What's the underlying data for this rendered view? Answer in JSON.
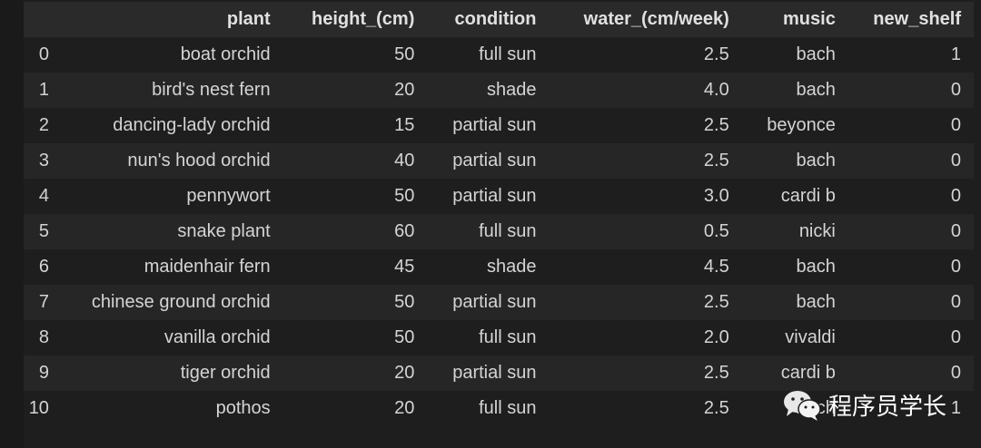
{
  "table": {
    "columns": [
      "",
      "plant",
      "height_(cm)",
      "condition",
      "water_(cm/week)",
      "music",
      "new_shelf"
    ],
    "rows": [
      [
        "0",
        "boat orchid",
        "50",
        "full sun",
        "2.5",
        "bach",
        "1"
      ],
      [
        "1",
        "bird's nest fern",
        "20",
        "shade",
        "4.0",
        "bach",
        "0"
      ],
      [
        "2",
        "dancing-lady orchid",
        "15",
        "partial sun",
        "2.5",
        "beyonce",
        "0"
      ],
      [
        "3",
        "nun's hood orchid",
        "40",
        "partial sun",
        "2.5",
        "bach",
        "0"
      ],
      [
        "4",
        "pennywort",
        "50",
        "partial sun",
        "3.0",
        "cardi b",
        "0"
      ],
      [
        "5",
        "snake plant",
        "60",
        "full sun",
        "0.5",
        "nicki",
        "0"
      ],
      [
        "6",
        "maidenhair fern",
        "45",
        "shade",
        "4.5",
        "bach",
        "0"
      ],
      [
        "7",
        "chinese ground orchid",
        "50",
        "partial sun",
        "2.5",
        "bach",
        "0"
      ],
      [
        "8",
        "vanilla orchid",
        "50",
        "full sun",
        "2.0",
        "vivaldi",
        "0"
      ],
      [
        "9",
        "tiger orchid",
        "20",
        "partial sun",
        "2.5",
        "cardi b",
        "0"
      ],
      [
        "10",
        "pothos",
        "20",
        "full sun",
        "2.5",
        "bach",
        "1"
      ]
    ]
  },
  "watermark": {
    "text": "程序员学长",
    "icon": "wechat-icon"
  }
}
